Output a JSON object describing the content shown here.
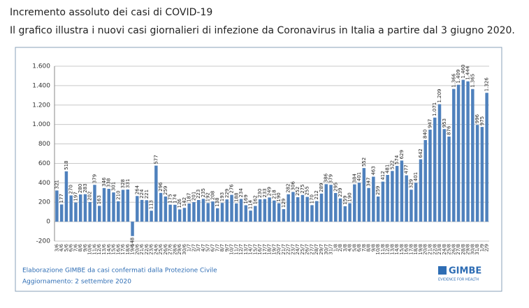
{
  "chart_data": {
    "type": "bar",
    "title": "Incremento assoluto dei casi di COVID-19",
    "subtitle": "Il grafico illustra i nuovi casi giornalieri di infezione da Coronavirus in Italia a partire dal 3 giugno 2020.",
    "source": "Elaborazione GIMBE da casi confermati dalla Protezione Civile",
    "updated": "Aggiornamento: 2 settembre 2020",
    "logo": "GIMBE",
    "logo_tagline": "EVIDENCE FOR HEALTH",
    "color": "#4f81bd",
    "grid": true,
    "ylim": [
      -200,
      1600
    ],
    "yticks": [
      -200,
      0,
      200,
      400,
      600,
      800,
      {
        "value": 1000,
        "label": "1.000"
      },
      {
        "value": 1200,
        "label": "1.200"
      },
      {
        "value": 1400,
        "label": "1.400"
      },
      {
        "value": 1600,
        "label": "1.600"
      }
    ],
    "categories": [
      "3/6",
      "4/6",
      "5/6",
      "6/6",
      "7/6",
      "8/6",
      "9/6",
      "10/6",
      "11/6",
      "12/6",
      "13/6",
      "14/6",
      "15/6",
      "16/6",
      "17/6",
      "18/6",
      "19/6",
      "20/6",
      "21/6",
      "22/6",
      "23/6",
      "24/6",
      "25/6",
      "26/6",
      "27/6",
      "28/6",
      "29/6",
      "30/6",
      "1/7",
      "2/7",
      "3/7",
      "4/7",
      "5/7",
      "6/7",
      "7/7",
      "8/7",
      "9/7",
      "10/7",
      "11/7",
      "12/7",
      "13/7",
      "14/7",
      "15/7",
      "16/7",
      "17/7",
      "18/7",
      "19/7",
      "20/7",
      "21/7",
      "22/7",
      "23/7",
      "24/7",
      "25/7",
      "26/7",
      "27/7",
      "28/7",
      "29/7",
      "30/7",
      "31/7",
      "1/8",
      "2/8",
      "3/8",
      "4/8",
      "5/8",
      "6/8",
      "7/8",
      "8/8",
      "9/8",
      "10/8",
      "11/8",
      "12/8",
      "13/8",
      "14/8",
      "15/8",
      "16/8",
      "17/8",
      "18/8",
      "19/8",
      "20/8",
      "21/8",
      "22/8",
      "23/8",
      "24/8",
      "25/8",
      "26/8",
      "27/8",
      "28/8",
      "29/8",
      "30/8",
      "31/8",
      "1/9",
      "2/9"
    ],
    "values": [
      321,
      177,
      518,
      270,
      197,
      280,
      283,
      202,
      379,
      163,
      346,
      338,
      301,
      210,
      328,
      331,
      -148,
      264,
      224,
      221,
      113,
      577,
      296,
      259,
      175,
      174,
      126,
      142,
      187,
      201,
      223,
      235,
      192,
      208,
      138,
      193,
      229,
      276,
      188,
      234,
      169,
      114,
      162,
      230,
      233,
      249,
      218,
      190,
      129,
      282,
      306,
      252,
      275,
      255,
      170,
      212,
      289,
      386,
      379,
      295,
      239,
      159,
      190,
      384,
      401,
      552,
      347,
      463,
      259,
      412,
      481,
      522,
      574,
      629,
      477,
      329,
      401,
      642,
      840,
      947,
      1071,
      1209,
      953,
      876,
      1366,
      1409,
      1460,
      1444,
      1365,
      996,
      975,
      1326
    ],
    "value_labels": [
      "321",
      "177",
      "518",
      "270",
      "197",
      "280",
      "283",
      "202",
      "379",
      "163",
      "346",
      "338",
      "301",
      "210",
      "328",
      "331",
      "-148",
      "264",
      "224",
      "221",
      "113",
      "577",
      "296",
      "259",
      "175",
      "174",
      "126",
      "142",
      "187",
      "201",
      "223",
      "235",
      "192",
      "208",
      "138",
      "193",
      "229",
      "276",
      "188",
      "234",
      "169",
      "114",
      "162",
      "230",
      "233",
      "249",
      "218",
      "190",
      "129",
      "282",
      "306",
      "252",
      "275",
      "255",
      "170",
      "212",
      "289",
      "386",
      "379",
      "295",
      "239",
      "159",
      "190",
      "384",
      "401",
      "552",
      "347",
      "463",
      "259",
      "412",
      "481",
      "522",
      "574",
      "629",
      "477",
      "329",
      "401",
      "642",
      "840",
      "947",
      "1.071",
      "1.209",
      "953",
      "876",
      "1.366",
      "1.409",
      "1.460",
      "1.444",
      "1.365",
      "996",
      "975",
      "1.326"
    ]
  }
}
